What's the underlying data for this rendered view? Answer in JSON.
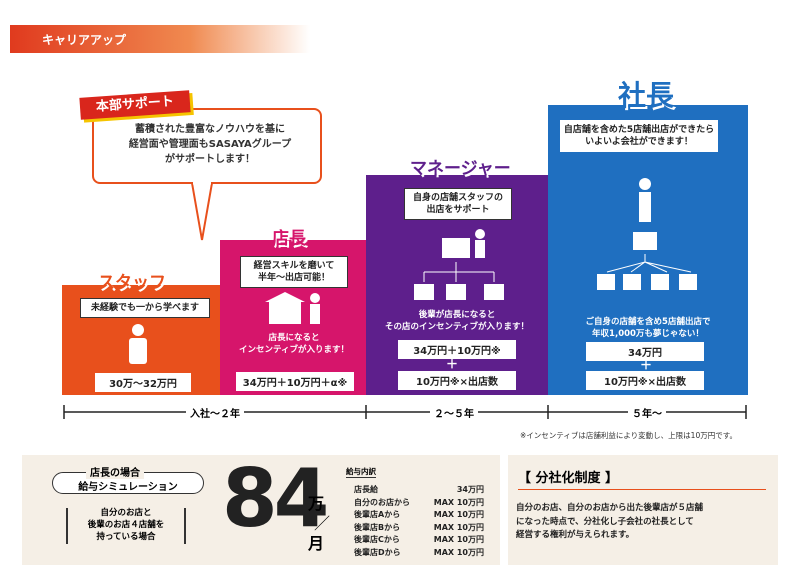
{
  "header": {
    "title": "キャリアアップ"
  },
  "support": {
    "label": "本部サポート",
    "text": "蓄積された豊富なノウハウを基に\n経営面や管理面もSASAYAグループ\nがサポートします！"
  },
  "steps": [
    {
      "title": "スタッフ",
      "box": "未経験でも一から学べます",
      "salary": "30万〜32万円"
    },
    {
      "title": "店長",
      "box": "経営スキルを磨いて\n半年〜出店可能！",
      "text": "店長になると\nインセンティブが入ります！",
      "salary": "34万円＋10万円＋α※"
    },
    {
      "title": "マネージャー",
      "box": "自身の店舗スタッフの\n出店をサポート",
      "text": "後輩が店長になると\nその店のインセンティブが入ります！",
      "salary": "34万円＋10万円※",
      "plus": "＋",
      "salary2": "10万円※×出店数"
    },
    {
      "title": "社長",
      "box": "自店舗を含めた5店舗出店ができたら\nいよいよ会社ができます！",
      "text": "ご自身の店舗を含め5店舗出店で\n年収1,000万も夢じゃない！",
      "salary": "34万円",
      "plus": "＋",
      "salary2": "10万円※×出店数"
    }
  ],
  "timeline": [
    "入社〜２年",
    "２〜５年",
    "５年〜"
  ],
  "note": "※インセンティブは店舗利益により変動し、上限は10万円です。",
  "simulation": {
    "label": "店長の場合",
    "title": "給与シミュレーション",
    "condition": "自分のお店と\n後輩のお店４店舗を\n持っている場合",
    "amount": "84",
    "unit": "万",
    "slash": "／",
    "per": "月",
    "breakdown_title": "給与内訳",
    "rows": [
      [
        "店長給",
        "34万円"
      ],
      [
        "自分のお店から",
        "MAX 10万円"
      ],
      [
        "後輩店Aから",
        "MAX 10万円"
      ],
      [
        "後輩店Bから",
        "MAX 10万円"
      ],
      [
        "後輩店Cから",
        "MAX 10万円"
      ],
      [
        "後輩店Dから",
        "MAX 10万円"
      ]
    ]
  },
  "spinoff": {
    "title": "【 分社化制度 】",
    "text": "自分のお店、自分のお店から出た後輩店が５店舗\nになった時点で、分社化し子会社の社長として\n経営する権利が与えられます。"
  }
}
